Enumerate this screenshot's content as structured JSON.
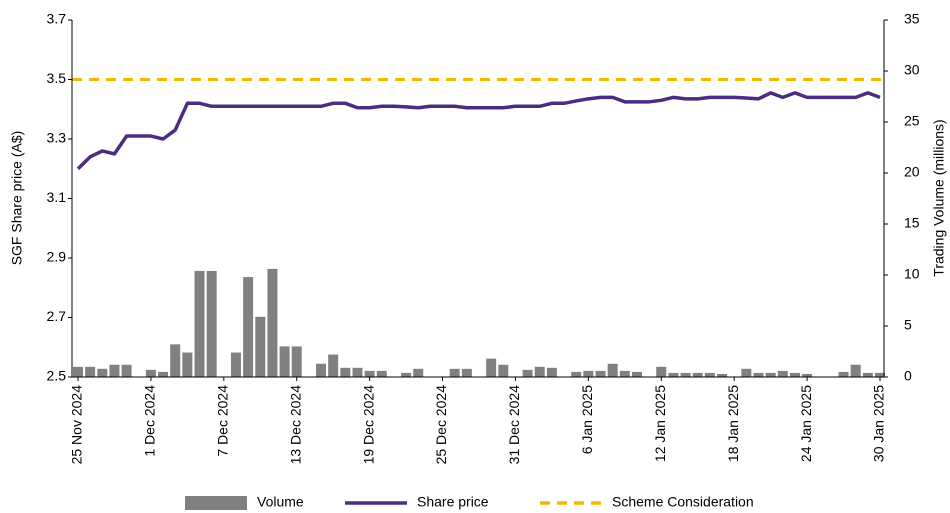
{
  "chart_data": {
    "type": "combo",
    "y_label": "SGF Share price (A$)",
    "y2_label": "Trading Volume (millions)",
    "categories": [
      "25 Nov 2024",
      null,
      null,
      null,
      null,
      null,
      "1 Dec 2024",
      null,
      null,
      null,
      null,
      null,
      "7 Dec 2024",
      null,
      null,
      null,
      null,
      null,
      "13 Dec 2024",
      null,
      null,
      null,
      null,
      null,
      "19 Dec 2024",
      null,
      null,
      null,
      null,
      null,
      "25 Dec 2024",
      null,
      null,
      null,
      null,
      null,
      "31 Dec 2024",
      null,
      null,
      null,
      null,
      null,
      "6 Jan 2025",
      null,
      null,
      null,
      null,
      null,
      "12 Jan 2025",
      null,
      null,
      null,
      null,
      null,
      "18 Jan 2025",
      null,
      null,
      null,
      null,
      null,
      "24 Jan 2025",
      null,
      null,
      null,
      null,
      null,
      "30 Jan 2025"
    ],
    "ylim": [
      2.5,
      3.7
    ],
    "yticks": [
      2.5,
      2.7,
      2.9,
      3.1,
      3.3,
      3.5,
      3.7
    ],
    "y2lim": [
      0,
      35
    ],
    "y2ticks": [
      0,
      5,
      10,
      15,
      20,
      25,
      30,
      35
    ],
    "legend": "bottom",
    "series": [
      {
        "name": "Volume",
        "type": "bar",
        "axis": "y2",
        "color": "#808080",
        "values": [
          1.0,
          1.0,
          0.8,
          1.2,
          1.2,
          null,
          0.7,
          0.5,
          3.2,
          2.4,
          10.4,
          10.4,
          null,
          2.4,
          9.8,
          5.9,
          10.6,
          3.0,
          3.0,
          null,
          1.3,
          2.2,
          0.9,
          0.9,
          0.6,
          0.6,
          null,
          0.4,
          0.8,
          null,
          null,
          0.8,
          0.8,
          null,
          1.8,
          1.2,
          null,
          0.7,
          1.0,
          0.9,
          null,
          0.5,
          0.6,
          0.6,
          1.3,
          0.6,
          0.5,
          null,
          1.0,
          0.4,
          0.4,
          0.4,
          0.4,
          0.3,
          null,
          0.8,
          0.4,
          0.4,
          0.6,
          0.4,
          0.3,
          null,
          null,
          0.5,
          1.2,
          0.4,
          0.4
        ]
      },
      {
        "name": "Share price",
        "type": "line",
        "color": "#4b2c7f",
        "values": [
          3.2,
          3.24,
          3.26,
          3.25,
          3.31,
          3.31,
          3.31,
          3.3,
          3.33,
          3.42,
          3.42,
          3.41,
          3.41,
          3.41,
          3.41,
          3.41,
          3.41,
          3.41,
          3.41,
          3.41,
          3.41,
          3.42,
          3.42,
          3.405,
          3.405,
          3.41,
          3.41,
          3.408,
          3.405,
          3.41,
          3.41,
          3.41,
          3.405,
          3.405,
          3.405,
          3.405,
          3.41,
          3.41,
          3.41,
          3.42,
          3.42,
          3.428,
          3.435,
          3.44,
          3.44,
          3.425,
          3.425,
          3.425,
          3.43,
          3.44,
          3.435,
          3.435,
          3.44,
          3.44,
          3.44,
          3.438,
          3.435,
          3.455,
          3.44,
          3.455,
          3.44,
          3.44,
          3.44,
          3.44,
          3.44,
          3.455,
          3.44
        ]
      },
      {
        "name": "Scheme Consideration",
        "type": "hline",
        "color": "#f5b800",
        "dashed": true,
        "value": 3.5
      }
    ]
  }
}
